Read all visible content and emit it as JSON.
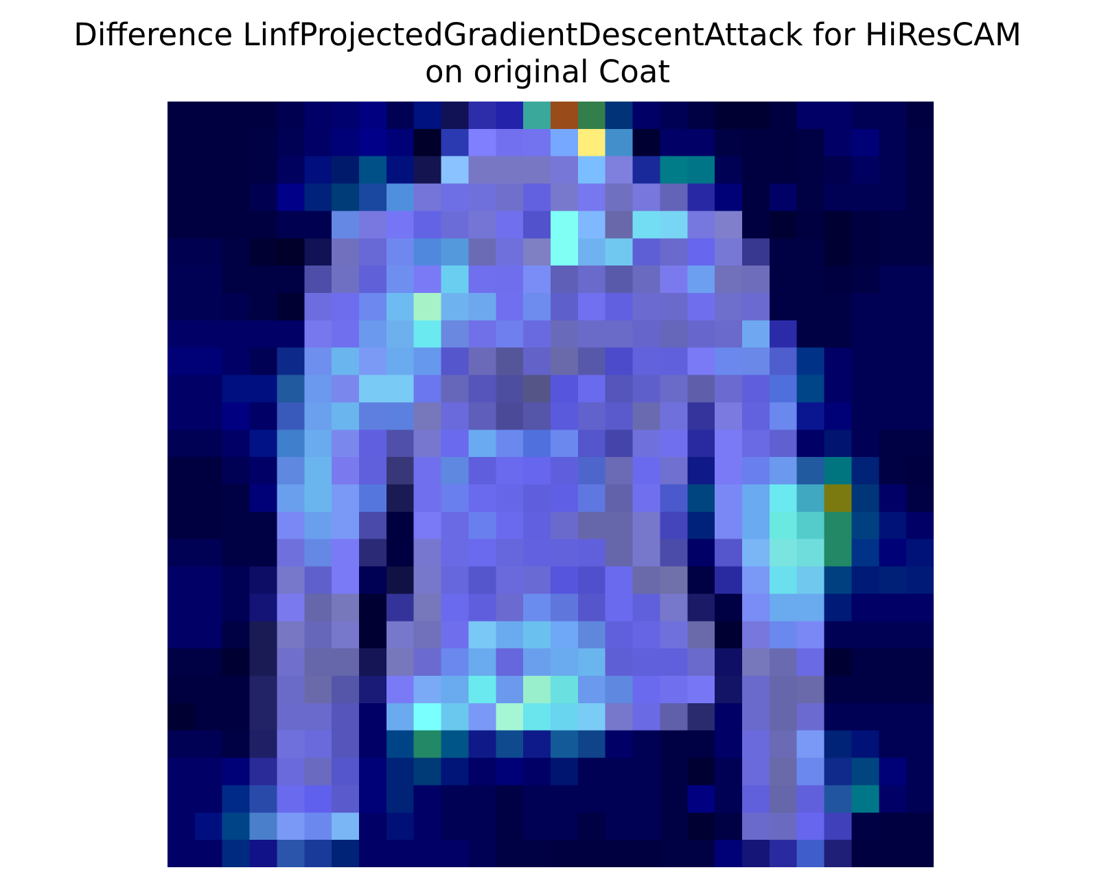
{
  "chart_data": {
    "type": "heatmap",
    "title_lines": [
      "Difference LinfProjectedGradientDescentAttack for HiResCAM",
      "on original Coat"
    ],
    "rows": 28,
    "cols": 28,
    "axis": "off",
    "colormap": "overlay of blue base with light-blue/cyan/yellow highlights",
    "cell_colors": [
      [
        "#000040",
        "#000040",
        "#000040",
        "#000040",
        "#000050",
        "#000066",
        "#00006E",
        "#000080",
        "#000055",
        "#001180",
        "#111155",
        "#2D2DAA",
        "#2222AA",
        "#3AA89A",
        "#994B1A",
        "#337F4C",
        "#003377",
        "#000066",
        "#000055",
        "#000044",
        "#000033",
        "#000033",
        "#000040",
        "#000066",
        "#000066",
        "#000055",
        "#000055",
        "#000040"
      ],
      [
        "#000040",
        "#000040",
        "#000040",
        "#000044",
        "#000055",
        "#000066",
        "#000077",
        "#000088",
        "#000077",
        "#00002A",
        "#2B3AB0",
        "#8080FF",
        "#7370F0",
        "#7373F0",
        "#77A8FF",
        "#FFEE7A",
        "#428FCC",
        "#000033",
        "#000066",
        "#000066",
        "#000044",
        "#000040",
        "#000040",
        "#000044",
        "#000066",
        "#000077",
        "#000055",
        "#000044"
      ],
      [
        "#000040",
        "#000040",
        "#000040",
        "#000044",
        "#00005E",
        "#000E7E",
        "#001A6B",
        "#005088",
        "#00117E",
        "#141450",
        "#89C2FF",
        "#7777C4",
        "#7777C4",
        "#7777C4",
        "#7777D8",
        "#7ABEFF",
        "#7F7FDD",
        "#1A2999",
        "#007B88",
        "#007588",
        "#000055",
        "#000040",
        "#000040",
        "#000044",
        "#00004F",
        "#000060",
        "#000055",
        "#000044"
      ],
      [
        "#000040",
        "#000040",
        "#000040",
        "#000050",
        "#000088",
        "#00227A",
        "#003C77",
        "#1A47A0",
        "#4F8FDD",
        "#7575D9",
        "#6F6FE5",
        "#7070DC",
        "#7070CC",
        "#6262E0",
        "#7878CC",
        "#7777EF",
        "#7070C0",
        "#7777DD",
        "#6363B8",
        "#2828A4",
        "#000077",
        "#000040",
        "#000066",
        "#000044",
        "#000055",
        "#000055",
        "#000055",
        "#000044"
      ],
      [
        "#000040",
        "#000040",
        "#000040",
        "#000040",
        "#000050",
        "#000050",
        "#6688E5",
        "#7878E0",
        "#7575F6",
        "#6363E5",
        "#6C6CD9",
        "#7575D5",
        "#7070EE",
        "#5252CC",
        "#80FFF5",
        "#7FB8FF",
        "#6868AA",
        "#73DDF4",
        "#78D5F4",
        "#7777E0",
        "#7F7FCC",
        "#000040",
        "#000033",
        "#000040",
        "#000033",
        "#000040",
        "#000044",
        "#000044"
      ],
      [
        "#000050",
        "#000050",
        "#000044",
        "#000033",
        "#00002A",
        "#111155",
        "#7070BF",
        "#6868D6",
        "#6F88F0",
        "#4F88DD",
        "#5599DD",
        "#6B6BB5",
        "#7070DD",
        "#7F7FC4",
        "#80FFF5",
        "#6FB2EF",
        "#70C8F0",
        "#5F5FD5",
        "#6A6ACC",
        "#6666EE",
        "#7777D6",
        "#383890",
        "#000044",
        "#000044",
        "#000033",
        "#000040",
        "#000044",
        "#000044"
      ],
      [
        "#000055",
        "#000055",
        "#000044",
        "#000044",
        "#000044",
        "#4E4EA8",
        "#7070C2",
        "#6060D9",
        "#6E8FF0",
        "#7A7AF7",
        "#6ACEF0",
        "#7070EE",
        "#6F6FEE",
        "#7A8CF6",
        "#5F5FB7",
        "#6A6ACC",
        "#5A5AAA",
        "#6A6AC0",
        "#7A7AEE",
        "#6D9FF0",
        "#7070BB",
        "#6D6DBB",
        "#000044",
        "#000044",
        "#000040",
        "#000044",
        "#000055",
        "#000055"
      ],
      [
        "#000055",
        "#000055",
        "#000050",
        "#000044",
        "#000033",
        "#6D6DE0",
        "#6D6DEE",
        "#6D88EE",
        "#6DBBF0",
        "#A8F2C8",
        "#6EB3F0",
        "#6DA7EE",
        "#6F6FEF",
        "#6D8CEE",
        "#5F5FCC",
        "#7070F0",
        "#6060E0",
        "#6A6AD0",
        "#6A6ACC",
        "#6F6FEE",
        "#6E6ECC",
        "#6A6AD0",
        "#000044",
        "#000044",
        "#000044",
        "#000055",
        "#000055",
        "#000055"
      ],
      [
        "#000066",
        "#000066",
        "#000066",
        "#000066",
        "#000066",
        "#7777EE",
        "#7070EE",
        "#6A99EE",
        "#6EB0EE",
        "#6AE9F0",
        "#6A88E0",
        "#7070E8",
        "#6F7FEE",
        "#6A6AE0",
        "#6A6ABB",
        "#6A6AC8",
        "#6A6AC8",
        "#6565CC",
        "#6666BB",
        "#6666CC",
        "#6A6ACC",
        "#6FA8F0",
        "#2B2BAA",
        "#000044",
        "#000044",
        "#000055",
        "#000055",
        "#000055"
      ],
      [
        "#000077",
        "#000077",
        "#000066",
        "#000055",
        "#0D2A8A",
        "#6F8FEE",
        "#6AB5EE",
        "#7A9AF6",
        "#6AAAEE",
        "#6699EE",
        "#5555CC",
        "#6A6AB8",
        "#555599",
        "#6262C8",
        "#6A6AAA",
        "#5858AA",
        "#4B4BCC",
        "#6262DD",
        "#6060DD",
        "#7A7AF6",
        "#6A88EE",
        "#6A88E8",
        "#4E5ECC",
        "#003388",
        "#000066",
        "#000055",
        "#000055",
        "#000055"
      ],
      [
        "#000066",
        "#000066",
        "#000F7F",
        "#000F7F",
        "#225AA0",
        "#6A99EE",
        "#7A88EE",
        "#7ACAF6",
        "#7ACAF6",
        "#6A77EE",
        "#6666BB",
        "#5555BB",
        "#4E4EA0",
        "#555588",
        "#5555DD",
        "#6A6AEE",
        "#5555BB",
        "#5F5FCC",
        "#6A6AC8",
        "#5E5EAA",
        "#6A6AD0",
        "#5F5FDD",
        "#4F6FDD",
        "#004588",
        "#000066",
        "#000055",
        "#000055",
        "#000055"
      ],
      [
        "#000066",
        "#000066",
        "#000080",
        "#000066",
        "#3A5ABB",
        "#6AA0EE",
        "#6AB5EE",
        "#5F7FE0",
        "#5C80E0",
        "#7777BB",
        "#6A6ADD",
        "#5F5FBB",
        "#4A4A99",
        "#5555AA",
        "#5A5ADD",
        "#6262CC",
        "#5A5ACC",
        "#6A6AB0",
        "#7070DD",
        "#34349C",
        "#7A7AE0",
        "#6262DE",
        "#6A88EE",
        "#0A1590",
        "#000077",
        "#000055",
        "#000055",
        "#000055"
      ],
      [
        "#000055",
        "#000055",
        "#000066",
        "#001285",
        "#3F7FCC",
        "#6AAAEE",
        "#7A88EE",
        "#5F5FE0",
        "#5050AA",
        "#7777D0",
        "#6A6AEE",
        "#6AAAF0",
        "#6A88EE",
        "#5070DD",
        "#6A88EE",
        "#5555CC",
        "#4444AA",
        "#7070DD",
        "#7070EE",
        "#2A2AA0",
        "#7A7AF6",
        "#6A6AE5",
        "#6060D0",
        "#000066",
        "#001470",
        "#000055",
        "#000044",
        "#000044"
      ],
      [
        "#000040",
        "#000040",
        "#000055",
        "#000066",
        "#5F88E0",
        "#6AB5EE",
        "#7A7AEE",
        "#6060DD",
        "#383878",
        "#7070EE",
        "#5F88E0",
        "#5F5FDD",
        "#6A6AEE",
        "#6666EE",
        "#5F5FDD",
        "#4E66CC",
        "#6A6AB5",
        "#6A6AEE",
        "#7070D0",
        "#0F1A88",
        "#7A7AF6",
        "#6A7FEE",
        "#6A99EE",
        "#225AA0",
        "#007580",
        "#002277",
        "#000044",
        "#000040"
      ],
      [
        "#000040",
        "#000040",
        "#000044",
        "#000077",
        "#6A9FEE",
        "#6AB5EE",
        "#7A99F6",
        "#5577DD",
        "#1A1A55",
        "#7070EE",
        "#6A7FEE",
        "#6A6AEE",
        "#6666E8",
        "#5F5FDD",
        "#5F5FE5",
        "#5F77E0",
        "#6262AA",
        "#7070EE",
        "#4A5ACC",
        "#00457F",
        "#7A88F6",
        "#6AAAF0",
        "#6AE9F0",
        "#40A8C0",
        "#7A7A10",
        "#003577",
        "#000066",
        "#000044"
      ],
      [
        "#000040",
        "#000040",
        "#000044",
        "#000044",
        "#7A88F6",
        "#6A9FEE",
        "#7A99F6",
        "#4A4AAA",
        "#000040",
        "#7A7AF6",
        "#6A6AE5",
        "#6A7FEE",
        "#6A6AEE",
        "#6060E0",
        "#6A6ACC",
        "#6666AA",
        "#6666AA",
        "#7777CC",
        "#4444BB",
        "#00227A",
        "#7A88F6",
        "#6AAAF0",
        "#6AE9E0",
        "#55CCCC",
        "#228866",
        "#004080",
        "#001177",
        "#000066"
      ],
      [
        "#000055",
        "#000055",
        "#000044",
        "#000044",
        "#7070DD",
        "#6688E5",
        "#7A7AF6",
        "#2A2A77",
        "#000040",
        "#7777D0",
        "#6A6AE5",
        "#6A6AEE",
        "#6666DD",
        "#6262E0",
        "#6262DD",
        "#6060DD",
        "#6666AA",
        "#7777CC",
        "#4B4BAA",
        "#000066",
        "#5555CC",
        "#7AB5F6",
        "#7AE5E0",
        "#70DDDD",
        "#228866",
        "#003388",
        "#000077",
        "#001177"
      ],
      [
        "#000066",
        "#000066",
        "#000055",
        "#0D0D66",
        "#7777CC",
        "#6060CC",
        "#7A7AF6",
        "#000055",
        "#111144",
        "#7777CC",
        "#6666DD",
        "#5555CC",
        "#6A6ADD",
        "#6A6AD5",
        "#5555DD",
        "#5050CC",
        "#6A6AEE",
        "#6A6AAA",
        "#7070AA",
        "#000044",
        "#2A2AA0",
        "#7A99F6",
        "#6AE0EE",
        "#70C8EE",
        "#004080",
        "#001A77",
        "#001F77",
        "#001A77"
      ],
      [
        "#000066",
        "#000066",
        "#000055",
        "#141477",
        "#7A7AEE",
        "#6666AA",
        "#7777BB",
        "#000033",
        "#333399",
        "#7777BB",
        "#6A6AEE",
        "#5F5FDD",
        "#6A6AD0",
        "#6A8CEE",
        "#5F77DD",
        "#5555CC",
        "#6A6AEE",
        "#6060DD",
        "#7777CC",
        "#1A1A66",
        "#000044",
        "#7A8CF6",
        "#6AAAEE",
        "#6AAAEE",
        "#001A77",
        "#000066",
        "#000066",
        "#000066"
      ],
      [
        "#000066",
        "#000066",
        "#000044",
        "#1A1A55",
        "#7777C4",
        "#6666BB",
        "#7777CC",
        "#000033",
        "#7777CC",
        "#7070BB",
        "#6F6FEE",
        "#7AC8F6",
        "#6AAAEE",
        "#6AC0EE",
        "#6FA8F6",
        "#5F88DD",
        "#6060DD",
        "#6666E5",
        "#7070DD",
        "#6A6AAA",
        "#000033",
        "#7777DD",
        "#6A88EE",
        "#7A88F6",
        "#000055",
        "#000055",
        "#000055",
        "#000055"
      ],
      [
        "#000044",
        "#000044",
        "#000033",
        "#1A1A55",
        "#7070CC",
        "#6666AA",
        "#6666AA",
        "#151555",
        "#7777BB",
        "#6A6AD0",
        "#6A88EE",
        "#6AAAEE",
        "#6666DD",
        "#6A9FEE",
        "#6AAAEE",
        "#6AB5EE",
        "#5F5FD5",
        "#6060DD",
        "#6060DD",
        "#6A6ACC",
        "#0F0F66",
        "#7777BB",
        "#6A6AB0",
        "#6A6AE5",
        "#000033",
        "#000044",
        "#000044",
        "#000044"
      ],
      [
        "#000040",
        "#000040",
        "#000040",
        "#222266",
        "#6A6AC8",
        "#6A6AAA",
        "#5555AA",
        "#1A1A77",
        "#7A7AF6",
        "#7AAAF6",
        "#6AAAEE",
        "#6AE9EE",
        "#6A99EE",
        "#99EECC",
        "#6AE0E0",
        "#6A99EE",
        "#5F88E0",
        "#6A6AEE",
        "#7070EE",
        "#7777F6",
        "#141466",
        "#6A6ACC",
        "#6666AA",
        "#6A6AAA",
        "#000044",
        "#000044",
        "#000044",
        "#000044"
      ],
      [
        "#000033",
        "#000040",
        "#000040",
        "#222266",
        "#6A6ACC",
        "#6A6ACC",
        "#5555BB",
        "#000066",
        "#6AAAEE",
        "#7AFFFF",
        "#6AC8EE",
        "#7A99F6",
        "#A5F6D5",
        "#6AE5EE",
        "#6AD5EE",
        "#7ACCF6",
        "#7777CC",
        "#6A6AE5",
        "#5F5FAA",
        "#2A2A6E",
        "#000066",
        "#6A6ACC",
        "#6666AA",
        "#6A6AD0",
        "#000055",
        "#000055",
        "#000055",
        "#000055"
      ],
      [
        "#000055",
        "#000055",
        "#000044",
        "#1F1F66",
        "#7070DD",
        "#6A6ADD",
        "#5555BB",
        "#000066",
        "#004488",
        "#228866",
        "#005588",
        "#0F1A88",
        "#0F4A8F",
        "#0F1A8A",
        "#135A99",
        "#0F448A",
        "#000066",
        "#000055",
        "#000044",
        "#000044",
        "#000066",
        "#6A6ADD",
        "#6A6AB5",
        "#7A99F6",
        "#002277",
        "#001177",
        "#000055",
        "#000055"
      ],
      [
        "#000066",
        "#000066",
        "#000077",
        "#2A2A99",
        "#6A6ADD",
        "#6A6AC0",
        "#5555CC",
        "#000077",
        "#002277",
        "#003A77",
        "#001577",
        "#000066",
        "#000077",
        "#000066",
        "#001570",
        "#000055",
        "#000055",
        "#000055",
        "#000044",
        "#000033",
        "#000055",
        "#6A6ADD",
        "#6A6AAA",
        "#6A88EE",
        "#0F2A8A",
        "#004480",
        "#000077",
        "#000055"
      ],
      [
        "#000066",
        "#000066",
        "#002A88",
        "#2A4AAA",
        "#6A6AEE",
        "#6060EE",
        "#5A5ACC",
        "#000077",
        "#002277",
        "#000066",
        "#000055",
        "#000055",
        "#000044",
        "#000055",
        "#000055",
        "#000055",
        "#000055",
        "#000055",
        "#000044",
        "#000080",
        "#000055",
        "#6060DD",
        "#6666AA",
        "#6060DD",
        "#2255A0",
        "#007788",
        "#000066",
        "#000055"
      ],
      [
        "#000066",
        "#000F7F",
        "#004488",
        "#4A7FCC",
        "#7A99F6",
        "#6A88EE",
        "#7AB5F6",
        "#000066",
        "#001077",
        "#000066",
        "#000055",
        "#000055",
        "#000044",
        "#000055",
        "#000055",
        "#000044",
        "#000055",
        "#000055",
        "#000044",
        "#000033",
        "#000044",
        "#6A6ACC",
        "#6A6AC0",
        "#6666EE",
        "#4040BB",
        "#000044",
        "#000040",
        "#000040"
      ],
      [
        "#000066",
        "#000066",
        "#002A80",
        "#111188",
        "#2A55AA",
        "#1A3A99",
        "#002277",
        "#000066",
        "#000066",
        "#000066",
        "#000066",
        "#000055",
        "#000044",
        "#000044",
        "#000040",
        "#000040",
        "#000040",
        "#000040",
        "#000044",
        "#000044",
        "#000077",
        "#151577",
        "#2A2AA0",
        "#3F5ECC",
        "#1F1F77",
        "#000040",
        "#000040",
        "#000040"
      ]
    ]
  }
}
